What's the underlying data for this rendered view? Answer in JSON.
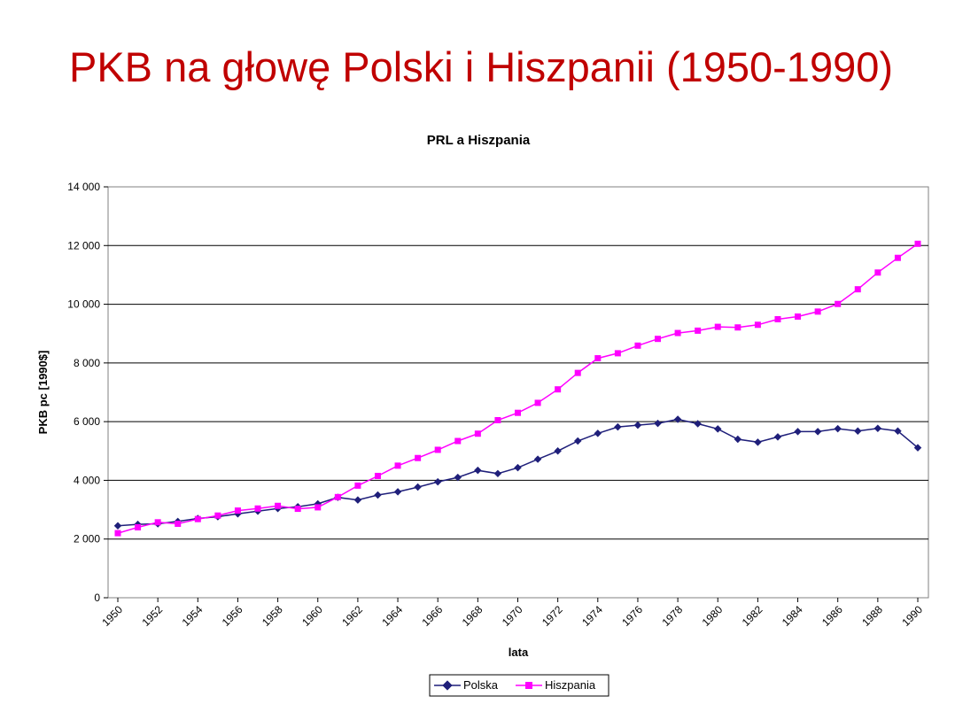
{
  "slide": {
    "title": "PKB na głowę Polski i Hiszpanii (1950-1990)"
  },
  "chart_data": {
    "type": "line",
    "title": "PRL a Hiszpania",
    "xlabel": "lata",
    "ylabel": "PKB pc [1990$]",
    "ylim": [
      0,
      14000
    ],
    "yticks": [
      0,
      2000,
      4000,
      6000,
      8000,
      10000,
      12000,
      14000
    ],
    "ytick_labels": [
      "0",
      "2 000",
      "4 000",
      "6 000",
      "8 000",
      "10 000",
      "12 000",
      "14 000"
    ],
    "grid": true,
    "legend_position": "bottom",
    "x": [
      1950,
      1951,
      1952,
      1953,
      1954,
      1955,
      1956,
      1957,
      1958,
      1959,
      1960,
      1961,
      1962,
      1963,
      1964,
      1965,
      1966,
      1967,
      1968,
      1969,
      1970,
      1971,
      1972,
      1973,
      1974,
      1975,
      1976,
      1977,
      1978,
      1979,
      1980,
      1981,
      1982,
      1983,
      1984,
      1985,
      1986,
      1987,
      1988,
      1989,
      1990
    ],
    "xtick_labels": [
      "1950",
      "1952",
      "1954",
      "1956",
      "1958",
      "1960",
      "1962",
      "1964",
      "1966",
      "1968",
      "1970",
      "1972",
      "1974",
      "1976",
      "1978",
      "1980",
      "1982",
      "1984",
      "1986",
      "1988",
      "1990"
    ],
    "series": [
      {
        "name": "Polska",
        "color": "#1f1f7a",
        "marker": "diamond",
        "values": [
          2450,
          2500,
          2520,
          2600,
          2700,
          2760,
          2860,
          2950,
          3040,
          3100,
          3200,
          3420,
          3330,
          3500,
          3610,
          3770,
          3950,
          4100,
          4340,
          4230,
          4430,
          4720,
          5000,
          5340,
          5600,
          5820,
          5880,
          5940,
          6080,
          5930,
          5750,
          5400,
          5300,
          5480,
          5660,
          5660,
          5760,
          5680,
          5770,
          5680,
          5110
        ]
      },
      {
        "name": "Hiszpania",
        "color": "#ff00ff",
        "marker": "square",
        "values": [
          2200,
          2400,
          2570,
          2520,
          2680,
          2800,
          2970,
          3040,
          3130,
          3030,
          3080,
          3430,
          3820,
          4150,
          4500,
          4760,
          5040,
          5340,
          5590,
          6050,
          6300,
          6640,
          7100,
          7660,
          8160,
          8330,
          8590,
          8820,
          9020,
          9100,
          9230,
          9210,
          9300,
          9490,
          9580,
          9750,
          10010,
          10510,
          11080,
          11580,
          12060
        ]
      }
    ]
  }
}
